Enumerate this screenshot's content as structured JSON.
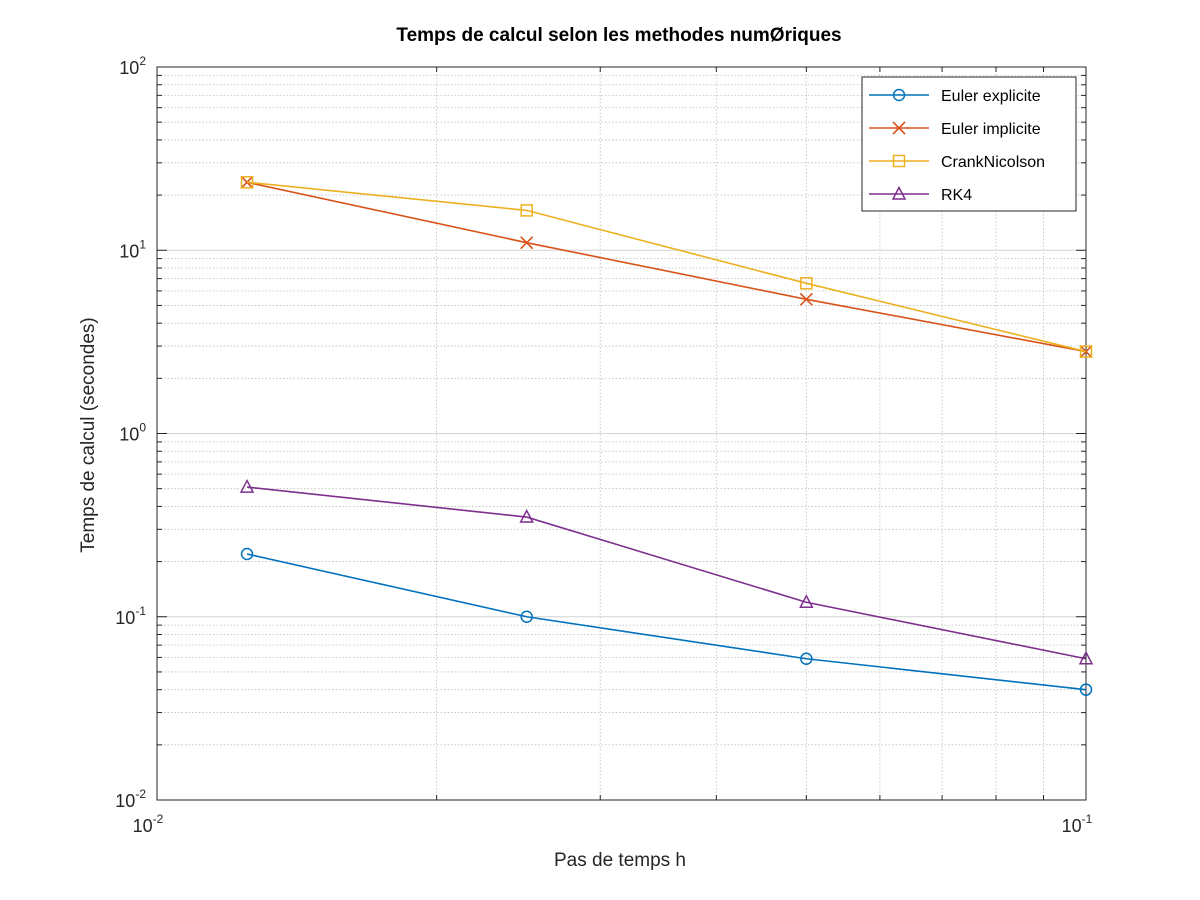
{
  "chart_data": {
    "type": "line",
    "title": "Temps de calcul selon les methodes numØriques",
    "xlabel": "Pas de temps h",
    "ylabel": "Temps de calcul (secondes)",
    "xscale": "log",
    "yscale": "log",
    "xlim": [
      0.01,
      0.1
    ],
    "ylim": [
      0.01,
      100
    ],
    "x_ticks": [
      {
        "base": "10",
        "exp": "-2",
        "value": 0.01
      },
      {
        "base": "10",
        "exp": "-1",
        "value": 0.1
      }
    ],
    "y_ticks": [
      {
        "base": "10",
        "exp": "-2",
        "value": 0.01
      },
      {
        "base": "10",
        "exp": "-1",
        "value": 0.1
      },
      {
        "base": "10",
        "exp": "0",
        "value": 1
      },
      {
        "base": "10",
        "exp": "1",
        "value": 10
      },
      {
        "base": "10",
        "exp": "2",
        "value": 100
      }
    ],
    "grid": true,
    "minor_grid": true,
    "legend_position": "top-right",
    "x": [
      0.0125,
      0.025,
      0.05,
      0.1
    ],
    "series": [
      {
        "name": "Euler explicite",
        "color": "#0072BD",
        "marker": "circle",
        "values": [
          0.22,
          0.1,
          0.059,
          0.04
        ]
      },
      {
        "name": "Euler implicite",
        "color": "#D95319",
        "marker": "x",
        "values": [
          23.5,
          11.0,
          5.4,
          2.8
        ]
      },
      {
        "name": "CrankNicolson",
        "color": "#EDB120",
        "marker": "square",
        "values": [
          23.5,
          16.5,
          6.6,
          2.8
        ]
      },
      {
        "name": "RK4",
        "color": "#7E2F8E",
        "marker": "triangle",
        "values": [
          0.51,
          0.35,
          0.12,
          0.059
        ]
      }
    ]
  }
}
